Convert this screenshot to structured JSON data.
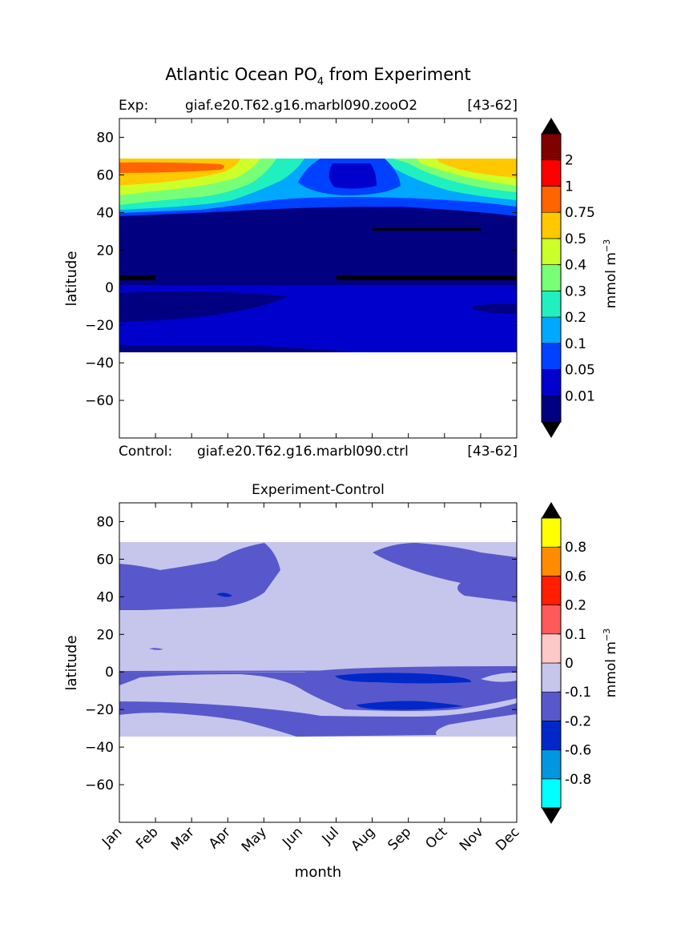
{
  "figure": {
    "title_main": "Atlantic Ocean PO",
    "title_sub": "4",
    "title_rest": " from Experiment"
  },
  "panel_top": {
    "exp_label": "Exp:",
    "exp_case": "giaf.e20.T62.g16.marbl090.zooO2",
    "exp_range": "[43-62]",
    "ctrl_label": "Control:",
    "ctrl_case": "giaf.e20.T62.g16.marbl090.ctrl",
    "ctrl_range": "[43-62]"
  },
  "panel_bottom": {
    "title": "Experiment-Control"
  },
  "colorbar_unit": {
    "base": "mmol m",
    "sup": "−3"
  },
  "chart_data": [
    {
      "type": "heatmap",
      "title": "",
      "xlabel": "",
      "ylabel": "latitude",
      "ylim": [
        -80,
        90
      ],
      "yticks": [
        80,
        60,
        40,
        20,
        0,
        -20,
        -40,
        -60
      ],
      "ytick_labels": [
        "80",
        "60",
        "40",
        "20",
        "0",
        "−20",
        "−40",
        "−60"
      ],
      "x_categories": [
        "Jan",
        "Feb",
        "Mar",
        "Apr",
        "May",
        "Jun",
        "Jul",
        "Aug",
        "Sep",
        "Oct",
        "Nov",
        "Dec"
      ],
      "data_lat_range": [
        -34,
        69
      ],
      "colorbar": {
        "labels": [
          "2",
          "1",
          "0.75",
          "0.5",
          "0.4",
          "0.3",
          "0.2",
          "0.1",
          "0.05",
          "0.01"
        ],
        "colors": [
          "#000080",
          "#0000cd",
          "#0040ff",
          "#00a8ff",
          "#20f0c0",
          "#78ff78",
          "#cdff28",
          "#ffc800",
          "#ff6400",
          "#ff0000",
          "#800000"
        ],
        "extend": "both"
      },
      "regions": [
        {
          "lat": [
            -34,
            -30
          ],
          "value_range": "<0.01"
        },
        {
          "lat": [
            -30,
            0
          ],
          "value_range": "0.01-0.05"
        },
        {
          "lat": [
            0,
            30
          ],
          "value_range": "<0.01"
        },
        {
          "lat": [
            30,
            42
          ],
          "value_range": "<0.01 to 0.05"
        },
        {
          "lat": [
            42,
            55
          ],
          "value_range": "0.05-0.3"
        },
        {
          "lat": [
            55,
            69
          ],
          "value_range": "0.1-1"
        }
      ]
    },
    {
      "type": "heatmap",
      "title": "Experiment-Control",
      "xlabel": "month",
      "ylabel": "latitude",
      "ylim": [
        -80,
        90
      ],
      "yticks": [
        80,
        60,
        40,
        20,
        0,
        -20,
        -40,
        -60
      ],
      "ytick_labels": [
        "80",
        "60",
        "40",
        "20",
        "0",
        "−20",
        "−40",
        "−60"
      ],
      "x_categories": [
        "Jan",
        "Feb",
        "Mar",
        "Apr",
        "May",
        "Jun",
        "Jul",
        "Aug",
        "Sep",
        "Oct",
        "Nov",
        "Dec"
      ],
      "data_lat_range": [
        -34,
        69
      ],
      "colorbar": {
        "labels": [
          "0.8",
          "0.6",
          "0.2",
          "0.1",
          "0",
          "-0.1",
          "-0.2",
          "-0.6",
          "-0.8"
        ],
        "colors": [
          "#00ffff",
          "#0096e0",
          "#0028c8",
          "#5858cc",
          "#c6c6ec",
          "#ffc8c8",
          "#ff5a5a",
          "#ff1e00",
          "#ff8c00",
          "#ffff00"
        ],
        "extend": "both"
      },
      "regions": [
        {
          "lat": [
            -34,
            69
          ],
          "value_range": "-0.1 to 0"
        },
        {
          "lat": [
            -22,
            -15
          ],
          "value_range": "-0.2 to -0.1"
        },
        {
          "lat": [
            33,
            60
          ],
          "value_range": "-0.2 to -0.1"
        }
      ]
    }
  ]
}
